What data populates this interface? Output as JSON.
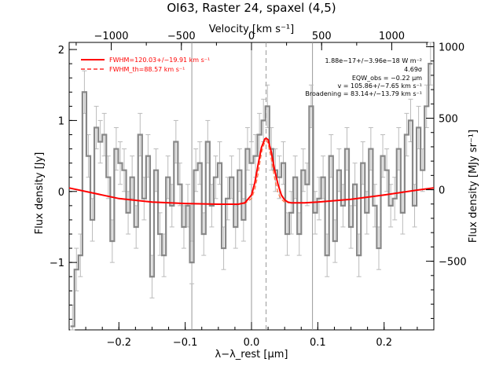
{
  "chart_data": {
    "type": "line",
    "title": "OI63, Raster 24, spaxel (4,5)",
    "xlabel": "λ−λ_rest [μm]",
    "ylabel": "Flux density [Jy]",
    "top_xlabel": "Velocity [km s⁻¹]",
    "right_ylabel": "Flux density [MJy sr⁻¹]",
    "xlim": [
      -0.275,
      0.275
    ],
    "ylim": [
      -1.95,
      2.1
    ],
    "top_xlim": [
      -1300,
      1300
    ],
    "right_ylim": [
      -980,
      1030
    ],
    "x_ticks": [
      -0.2,
      -0.1,
      0.0,
      0.1,
      0.2
    ],
    "x_tick_labels": [
      "−0.2",
      "−0.1",
      "0.0",
      "0.1",
      "0.2"
    ],
    "y_ticks": [
      -1,
      0,
      1,
      2
    ],
    "y_tick_labels": [
      "−1",
      "0",
      "1",
      "2"
    ],
    "top_ticks": [
      -1000,
      -500,
      0,
      500,
      1000
    ],
    "top_tick_labels": [
      "−1000",
      "−500",
      "0",
      "500",
      "1000"
    ],
    "right_ticks": [
      -500,
      0,
      500,
      1000
    ],
    "right_tick_labels": [
      "−500",
      "0",
      "500",
      "1000"
    ],
    "vertical_lines": [
      -0.09,
      0.0,
      0.092
    ],
    "line_center": 0.022,
    "legend": {
      "placement": "top-left",
      "entries": [
        "FWHM=120.03+/−19.91 km s⁻¹",
        "FWHM_th=88.57 km s⁻¹"
      ]
    },
    "annotations": [
      "1.88e−17+/−3.96e−18 W m⁻²",
      "4.69σ",
      "EQW_obs = −0.22 μm",
      "v = 105.86+/−7.65 km s⁻¹",
      "Broadening = 83.14+/−13.79 km s⁻¹"
    ],
    "data_x": [
      -0.27,
      -0.264,
      -0.258,
      -0.252,
      -0.246,
      -0.24,
      -0.234,
      -0.228,
      -0.222,
      -0.216,
      -0.21,
      -0.204,
      -0.198,
      -0.192,
      -0.186,
      -0.18,
      -0.174,
      -0.168,
      -0.162,
      -0.156,
      -0.15,
      -0.144,
      -0.138,
      -0.132,
      -0.126,
      -0.12,
      -0.114,
      -0.108,
      -0.102,
      -0.096,
      -0.09,
      -0.084,
      -0.078,
      -0.072,
      -0.066,
      -0.06,
      -0.054,
      -0.048,
      -0.042,
      -0.036,
      -0.03,
      -0.024,
      -0.018,
      -0.012,
      -0.006,
      0.0,
      0.006,
      0.012,
      0.018,
      0.024,
      0.03,
      0.036,
      0.042,
      0.048,
      0.054,
      0.06,
      0.066,
      0.072,
      0.078,
      0.084,
      0.09,
      0.096,
      0.102,
      0.108,
      0.114,
      0.12,
      0.126,
      0.132,
      0.138,
      0.144,
      0.15,
      0.156,
      0.162,
      0.168,
      0.174,
      0.18,
      0.186,
      0.192,
      0.198,
      0.204,
      0.21,
      0.216,
      0.222,
      0.228,
      0.234,
      0.24,
      0.246,
      0.252,
      0.258,
      0.264,
      0.27
    ],
    "data_y": [
      -1.9,
      -1.1,
      -0.9,
      1.4,
      0.5,
      -0.4,
      0.9,
      0.7,
      0.8,
      0.2,
      -0.7,
      0.6,
      0.4,
      0.3,
      -0.3,
      0.2,
      -0.5,
      0.8,
      -0.1,
      0.5,
      -1.2,
      0.3,
      -0.6,
      -0.9,
      0.2,
      -0.2,
      0.7,
      0.1,
      -0.5,
      -0.2,
      -1.0,
      0.3,
      0.4,
      -0.6,
      0.7,
      -0.2,
      0.2,
      0.4,
      -0.8,
      -0.1,
      0.2,
      -0.5,
      0.3,
      -0.4,
      0.6,
      0.4,
      0.5,
      0.8,
      1.0,
      1.2,
      0.6,
      0.3,
      0.2,
      0.4,
      -0.6,
      -0.3,
      0.2,
      -0.6,
      0.3,
      0.1,
      1.2,
      -0.3,
      -0.1,
      0.2,
      -0.9,
      0.5,
      -0.7,
      0.3,
      -0.2,
      0.6,
      -0.5,
      0.1,
      -0.9,
      0.4,
      -0.3,
      0.6,
      -0.2,
      -0.8,
      0.5,
      0.3,
      -0.2,
      -0.1,
      0.6,
      -0.3,
      0.8,
      1.0,
      -0.2,
      0.9,
      0.3,
      1.2,
      1.8
    ],
    "data_err": 0.3,
    "fit_x": [
      -0.275,
      -0.2,
      -0.15,
      -0.1,
      -0.05,
      -0.02,
      -0.01,
      0.0,
      0.005,
      0.01,
      0.015,
      0.02,
      0.022,
      0.025,
      0.03,
      0.035,
      0.04,
      0.045,
      0.05,
      0.055,
      0.06,
      0.08,
      0.1,
      0.15,
      0.2,
      0.25,
      0.275
    ],
    "fit_y": [
      0.05,
      -0.1,
      -0.15,
      -0.17,
      -0.18,
      -0.18,
      -0.16,
      -0.05,
      0.12,
      0.38,
      0.62,
      0.74,
      0.75,
      0.73,
      0.55,
      0.3,
      0.1,
      -0.05,
      -0.12,
      -0.15,
      -0.16,
      -0.16,
      -0.15,
      -0.11,
      -0.05,
      0.02,
      0.05
    ],
    "fit_th_y": [
      0.05,
      -0.1,
      -0.15,
      -0.17,
      -0.18,
      -0.18,
      -0.17,
      -0.1,
      0.03,
      0.25,
      0.55,
      0.7,
      0.72,
      0.68,
      0.45,
      0.18,
      -0.02,
      -0.11,
      -0.15,
      -0.16,
      -0.16,
      -0.16,
      -0.15,
      -0.11,
      -0.05,
      0.02,
      0.05
    ]
  }
}
